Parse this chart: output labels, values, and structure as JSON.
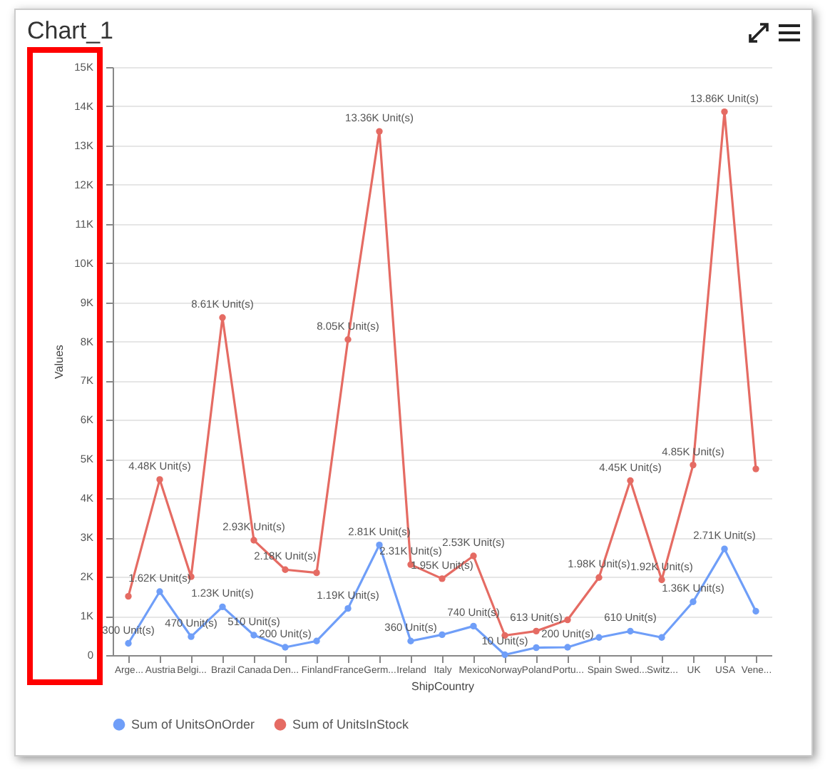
{
  "chart_data": {
    "type": "line",
    "title": "Chart_1",
    "xlabel": "ShipCountry",
    "ylabel": "Values",
    "categories": [
      "Arge...",
      "Austria",
      "Belgi...",
      "Brazil",
      "Canada",
      "Den...",
      "Finland",
      "France",
      "Germ...",
      "Ireland",
      "Italy",
      "Mexico",
      "Norway",
      "Poland",
      "Portu...",
      "Spain",
      "Swed...",
      "Switz...",
      "UK",
      "USA",
      "Vene..."
    ],
    "series": [
      {
        "name": "Sum of UnitsOnOrder",
        "color": "#6f9ef8",
        "values": [
          300,
          1620,
          470,
          1230,
          510,
          200,
          360,
          1190,
          2810,
          360,
          520,
          740,
          10,
          190,
          200,
          450,
          610,
          450,
          1360,
          2710,
          1120
        ],
        "value_labels": [
          "300 Unit(s)",
          "1.62K Unit(s)",
          "470 Unit(s)",
          "1.23K Unit(s)",
          "510 Unit(s)",
          "200 Unit(s)",
          null,
          "1.19K Unit(s)",
          "2.81K Unit(s)",
          "360 Unit(s)",
          null,
          "740 Unit(s)",
          "10 Unit(s)",
          null,
          "200 Unit(s)",
          null,
          "610 Unit(s)",
          null,
          "1.36K Unit(s)",
          "2.71K Unit(s)",
          null
        ]
      },
      {
        "name": "Sum of UnitsInStock",
        "color": "#e56b63",
        "values": [
          1500,
          4480,
          2000,
          8610,
          2930,
          2180,
          2100,
          8050,
          13360,
          2310,
          1950,
          2530,
          500,
          613,
          900,
          1980,
          4450,
          1920,
          4850,
          13860,
          4750
        ],
        "value_labels": [
          null,
          "4.48K Unit(s)",
          null,
          "8.61K Unit(s)",
          "2.93K Unit(s)",
          "2.18K Unit(s)",
          null,
          "8.05K Unit(s)",
          "13.36K Unit(s)",
          "2.31K Unit(s)",
          "1.95K Unit(s)",
          "2.53K Unit(s)",
          null,
          "613 Unit(s)",
          null,
          "1.98K Unit(s)",
          "4.45K Unit(s)",
          "1.92K Unit(s)",
          "4.85K Unit(s)",
          "13.86K Unit(s)",
          null
        ]
      }
    ],
    "ylim": [
      0,
      15000
    ],
    "yticks": [
      0,
      {
        "value": 1000,
        "label": "1K"
      },
      {
        "value": 2000,
        "label": "2K"
      },
      {
        "value": 3000,
        "label": "3K"
      },
      {
        "value": 4000,
        "label": "4K"
      },
      {
        "value": 5000,
        "label": "5K"
      },
      {
        "value": 6000,
        "label": "6K"
      },
      {
        "value": 7000,
        "label": "7K"
      },
      {
        "value": 8000,
        "label": "8K"
      },
      {
        "value": 9000,
        "label": "9K"
      },
      {
        "value": 10000,
        "label": "10K"
      },
      {
        "value": 11000,
        "label": "11K"
      },
      {
        "value": 12000,
        "label": "12K"
      },
      {
        "value": 13000,
        "label": "13K"
      },
      {
        "value": 14000,
        "label": "14K"
      },
      {
        "value": 15000,
        "label": "15K"
      }
    ],
    "grid": "y",
    "legend": "bottom",
    "marker": "circle",
    "line_style": "solid"
  }
}
